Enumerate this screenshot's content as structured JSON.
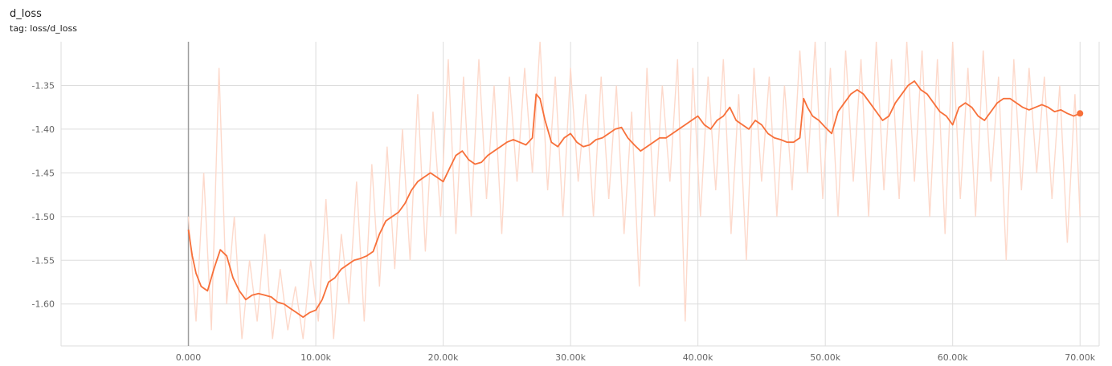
{
  "header": {
    "title": "d_loss",
    "tag": "tag: loss/d_loss"
  },
  "colors": {
    "smoothed_line": "#f7703a",
    "raw_line": "#fdd9cb",
    "grid": "#dddddd",
    "zero_axis": "#9e9e9e"
  },
  "chart_data": {
    "type": "line",
    "title": "d_loss",
    "subtitle": "tag: loss/d_loss",
    "xlabel": "",
    "ylabel": "",
    "xlim": [
      -10000,
      71500
    ],
    "ylim": [
      -1.648,
      -1.3
    ],
    "grid": true,
    "x_ticks": [
      0,
      10000,
      20000,
      30000,
      40000,
      50000,
      60000,
      70000
    ],
    "x_tick_labels": [
      "0.000",
      "10.00k",
      "20.00k",
      "30.00k",
      "40.00k",
      "50.00k",
      "60.00k",
      "70.00k"
    ],
    "y_ticks": [
      -1.35,
      -1.4,
      -1.45,
      -1.5,
      -1.55,
      -1.6
    ],
    "y_tick_labels": [
      "-1.35",
      "-1.40",
      "-1.45",
      "-1.50",
      "-1.55",
      "-1.60"
    ],
    "series": [
      {
        "role": "smoothed",
        "x": [
          0,
          300,
          600,
          1000,
          1500,
          2000,
          2500,
          3000,
          3500,
          4000,
          4500,
          5000,
          5500,
          6000,
          6500,
          7000,
          7500,
          8000,
          8500,
          9000,
          9500,
          10000,
          10500,
          11000,
          11500,
          12000,
          12500,
          13000,
          13500,
          14000,
          14500,
          15000,
          15500,
          16000,
          16500,
          17000,
          17500,
          18000,
          18500,
          19000,
          19500,
          20000,
          20500,
          21000,
          21500,
          22000,
          22500,
          23000,
          23500,
          24000,
          24500,
          25000,
          25500,
          26000,
          26500,
          27000,
          27300,
          27600,
          28000,
          28500,
          29000,
          29500,
          30000,
          30500,
          31000,
          31500,
          32000,
          32500,
          33000,
          33500,
          34000,
          34500,
          35000,
          35500,
          36000,
          36500,
          37000,
          37500,
          38000,
          38500,
          39000,
          39500,
          40000,
          40500,
          41000,
          41500,
          42000,
          42500,
          43000,
          43500,
          44000,
          44500,
          45000,
          45500,
          46000,
          46500,
          47000,
          47500,
          48000,
          48300,
          48600,
          49000,
          49500,
          50000,
          50500,
          51000,
          51500,
          52000,
          52500,
          53000,
          53500,
          54000,
          54500,
          55000,
          55500,
          56000,
          56500,
          57000,
          57500,
          58000,
          58500,
          59000,
          59500,
          60000,
          60500,
          61000,
          61500,
          62000,
          62500,
          63000,
          63500,
          64000,
          64500,
          65000,
          65500,
          66000,
          66500,
          67000,
          67500,
          68000,
          68500,
          69000,
          69500,
          70000
        ],
        "values": [
          -1.515,
          -1.545,
          -1.565,
          -1.58,
          -1.585,
          -1.56,
          -1.538,
          -1.545,
          -1.57,
          -1.585,
          -1.595,
          -1.59,
          -1.588,
          -1.59,
          -1.592,
          -1.598,
          -1.6,
          -1.605,
          -1.61,
          -1.615,
          -1.61,
          -1.607,
          -1.595,
          -1.575,
          -1.57,
          -1.56,
          -1.555,
          -1.55,
          -1.548,
          -1.545,
          -1.54,
          -1.52,
          -1.505,
          -1.5,
          -1.495,
          -1.485,
          -1.47,
          -1.46,
          -1.455,
          -1.45,
          -1.455,
          -1.46,
          -1.445,
          -1.43,
          -1.425,
          -1.435,
          -1.44,
          -1.438,
          -1.43,
          -1.425,
          -1.42,
          -1.415,
          -1.412,
          -1.415,
          -1.418,
          -1.41,
          -1.36,
          -1.365,
          -1.39,
          -1.415,
          -1.42,
          -1.41,
          -1.405,
          -1.415,
          -1.42,
          -1.418,
          -1.412,
          -1.41,
          -1.405,
          -1.4,
          -1.398,
          -1.41,
          -1.418,
          -1.425,
          -1.42,
          -1.415,
          -1.41,
          -1.41,
          -1.405,
          -1.4,
          -1.395,
          -1.39,
          -1.385,
          -1.395,
          -1.4,
          -1.39,
          -1.385,
          -1.375,
          -1.39,
          -1.395,
          -1.4,
          -1.39,
          -1.395,
          -1.405,
          -1.41,
          -1.412,
          -1.415,
          -1.415,
          -1.41,
          -1.365,
          -1.375,
          -1.385,
          -1.39,
          -1.398,
          -1.405,
          -1.38,
          -1.37,
          -1.36,
          -1.355,
          -1.36,
          -1.37,
          -1.38,
          -1.39,
          -1.385,
          -1.37,
          -1.36,
          -1.35,
          -1.345,
          -1.355,
          -1.36,
          -1.37,
          -1.38,
          -1.385,
          -1.395,
          -1.375,
          -1.37,
          -1.375,
          -1.385,
          -1.39,
          -1.38,
          -1.37,
          -1.365,
          -1.365,
          -1.37,
          -1.375,
          -1.378,
          -1.375,
          -1.372,
          -1.375,
          -1.38,
          -1.378,
          -1.382,
          -1.385,
          -1.382
        ]
      },
      {
        "role": "raw",
        "x": [
          0,
          600,
          1200,
          1800,
          2400,
          3000,
          3600,
          4200,
          4800,
          5400,
          6000,
          6600,
          7200,
          7800,
          8400,
          9000,
          9600,
          10200,
          10800,
          11400,
          12000,
          12600,
          13200,
          13800,
          14400,
          15000,
          15600,
          16200,
          16800,
          17400,
          18000,
          18600,
          19200,
          19800,
          20400,
          21000,
          21600,
          22200,
          22800,
          23400,
          24000,
          24600,
          25200,
          25800,
          26400,
          27000,
          27600,
          28200,
          28800,
          29400,
          30000,
          30600,
          31200,
          31800,
          32400,
          33000,
          33600,
          34200,
          34800,
          35400,
          36000,
          36600,
          37200,
          37800,
          38400,
          39000,
          39600,
          40200,
          40800,
          41400,
          42000,
          42600,
          43200,
          43800,
          44400,
          45000,
          45600,
          46200,
          46800,
          47400,
          48000,
          48600,
          49200,
          49800,
          50400,
          51000,
          51600,
          52200,
          52800,
          53400,
          54000,
          54600,
          55200,
          55800,
          56400,
          57000,
          57600,
          58200,
          58800,
          59400,
          60000,
          60600,
          61200,
          61800,
          62400,
          63000,
          63600,
          64200,
          64800,
          65400,
          66000,
          66600,
          67200,
          67800,
          68400,
          69000,
          69600,
          70000
        ],
        "values": [
          -1.5,
          -1.62,
          -1.45,
          -1.63,
          -1.33,
          -1.6,
          -1.5,
          -1.64,
          -1.55,
          -1.62,
          -1.52,
          -1.64,
          -1.56,
          -1.63,
          -1.58,
          -1.64,
          -1.55,
          -1.62,
          -1.48,
          -1.64,
          -1.52,
          -1.6,
          -1.46,
          -1.62,
          -1.44,
          -1.58,
          -1.42,
          -1.56,
          -1.4,
          -1.55,
          -1.36,
          -1.54,
          -1.38,
          -1.5,
          -1.32,
          -1.52,
          -1.34,
          -1.5,
          -1.32,
          -1.48,
          -1.35,
          -1.52,
          -1.34,
          -1.46,
          -1.33,
          -1.45,
          -1.3,
          -1.47,
          -1.34,
          -1.5,
          -1.33,
          -1.46,
          -1.36,
          -1.5,
          -1.34,
          -1.48,
          -1.35,
          -1.52,
          -1.38,
          -1.58,
          -1.33,
          -1.5,
          -1.35,
          -1.46,
          -1.32,
          -1.62,
          -1.33,
          -1.5,
          -1.34,
          -1.47,
          -1.32,
          -1.52,
          -1.36,
          -1.55,
          -1.33,
          -1.46,
          -1.34,
          -1.5,
          -1.35,
          -1.47,
          -1.31,
          -1.45,
          -1.3,
          -1.48,
          -1.33,
          -1.5,
          -1.31,
          -1.46,
          -1.32,
          -1.5,
          -1.3,
          -1.47,
          -1.32,
          -1.48,
          -1.3,
          -1.46,
          -1.31,
          -1.5,
          -1.32,
          -1.52,
          -1.3,
          -1.48,
          -1.33,
          -1.5,
          -1.31,
          -1.46,
          -1.34,
          -1.55,
          -1.32,
          -1.47,
          -1.33,
          -1.45,
          -1.34,
          -1.48,
          -1.35,
          -1.53,
          -1.36,
          -1.5
        ]
      }
    ]
  }
}
